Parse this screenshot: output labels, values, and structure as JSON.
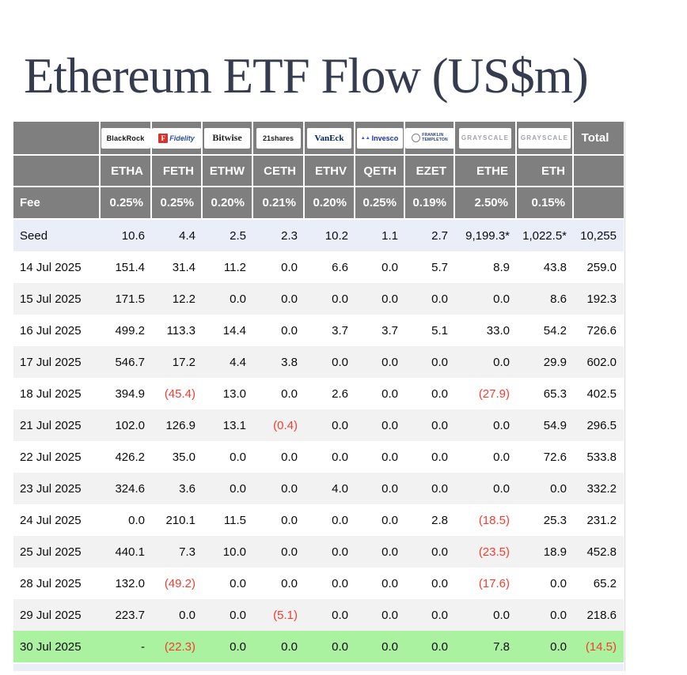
{
  "page": {
    "title": "Ethereum ETF Flow (US$m)"
  },
  "colors": {
    "header_gray": "#7f7f7f",
    "seed_row_blue": "#e9eef8",
    "alt_row_gray": "#f2f2f2",
    "green_row": "#aaf2a0",
    "negative_red": "#f43b30",
    "title_navy": "#363c4f"
  },
  "chart_data": {
    "type": "table",
    "title": "Ethereum ETF Flow (US$m)",
    "fee_row_label": "Fee",
    "total_header": "Total",
    "columns": [
      {
        "id": "blackrock",
        "logo_text": "BlackRock",
        "ticker": "ETHA",
        "fee": "0.25%"
      },
      {
        "id": "fidelity",
        "logo_text": "Fidelity",
        "ticker": "FETH",
        "fee": "0.25%"
      },
      {
        "id": "bitwise",
        "logo_text": "Bitwise",
        "ticker": "ETHW",
        "fee": "0.20%"
      },
      {
        "id": "21shares",
        "logo_text": "21shares",
        "ticker": "CETH",
        "fee": "0.21%"
      },
      {
        "id": "vaneck",
        "logo_text": "VanEck",
        "ticker": "ETHV",
        "fee": "0.20%"
      },
      {
        "id": "invesco",
        "logo_text": "Invesco",
        "ticker": "QETH",
        "fee": "0.25%"
      },
      {
        "id": "franklin",
        "logo_text": "FRANKLIN TEMPLETON",
        "logo_lines": [
          "FRANKLIN",
          "TEMPLETON"
        ],
        "ticker": "EZET",
        "fee": "0.19%"
      },
      {
        "id": "grayscale",
        "logo_text": "GRAYSCALE",
        "ticker": "ETHE",
        "fee": "2.50%"
      },
      {
        "id": "grayscale2",
        "logo_text": "GRAYSCALE",
        "ticker": "ETH",
        "fee": "0.15%"
      },
      {
        "id": "total",
        "header": "Total",
        "ticker": "",
        "fee": ""
      }
    ],
    "rows": [
      {
        "label": "Seed",
        "style": "seed",
        "values": [
          "10.6",
          "4.4",
          "2.5",
          "2.3",
          "10.2",
          "1.1",
          "2.7",
          "9,199.3*",
          "1,022.5*",
          "10,255"
        ]
      },
      {
        "label": "14 Jul 2025",
        "style": "plain",
        "values": [
          "151.4",
          "31.4",
          "11.2",
          "0.0",
          "6.6",
          "0.0",
          "5.7",
          "8.9",
          "43.8",
          "259.0"
        ]
      },
      {
        "label": "15 Jul 2025",
        "style": "alt",
        "values": [
          "171.5",
          "12.2",
          "0.0",
          "0.0",
          "0.0",
          "0.0",
          "0.0",
          "0.0",
          "8.6",
          "192.3"
        ]
      },
      {
        "label": "16 Jul 2025",
        "style": "plain",
        "values": [
          "499.2",
          "113.3",
          "14.4",
          "0.0",
          "3.7",
          "3.7",
          "5.1",
          "33.0",
          "54.2",
          "726.6"
        ]
      },
      {
        "label": "17 Jul 2025",
        "style": "alt",
        "values": [
          "546.7",
          "17.2",
          "4.4",
          "3.8",
          "0.0",
          "0.0",
          "0.0",
          "0.0",
          "29.9",
          "602.0"
        ]
      },
      {
        "label": "18 Jul 2025",
        "style": "plain",
        "values": [
          "394.9",
          "(45.4)",
          "13.0",
          "0.0",
          "2.6",
          "0.0",
          "0.0",
          "(27.9)",
          "65.3",
          "402.5"
        ]
      },
      {
        "label": "21 Jul 2025",
        "style": "alt",
        "values": [
          "102.0",
          "126.9",
          "13.1",
          "(0.4)",
          "0.0",
          "0.0",
          "0.0",
          "0.0",
          "54.9",
          "296.5"
        ]
      },
      {
        "label": "22 Jul 2025",
        "style": "plain",
        "values": [
          "426.2",
          "35.0",
          "0.0",
          "0.0",
          "0.0",
          "0.0",
          "0.0",
          "0.0",
          "72.6",
          "533.8"
        ]
      },
      {
        "label": "23 Jul 2025",
        "style": "alt",
        "values": [
          "324.6",
          "3.6",
          "0.0",
          "0.0",
          "4.0",
          "0.0",
          "0.0",
          "0.0",
          "0.0",
          "332.2"
        ]
      },
      {
        "label": "24 Jul 2025",
        "style": "plain",
        "values": [
          "0.0",
          "210.1",
          "11.5",
          "0.0",
          "0.0",
          "0.0",
          "2.8",
          "(18.5)",
          "25.3",
          "231.2"
        ]
      },
      {
        "label": "25 Jul 2025",
        "style": "alt",
        "values": [
          "440.1",
          "7.3",
          "10.0",
          "0.0",
          "0.0",
          "0.0",
          "0.0",
          "(23.5)",
          "18.9",
          "452.8"
        ]
      },
      {
        "label": "28 Jul 2025",
        "style": "plain",
        "values": [
          "132.0",
          "(49.2)",
          "0.0",
          "0.0",
          "0.0",
          "0.0",
          "0.0",
          "(17.6)",
          "0.0",
          "65.2"
        ]
      },
      {
        "label": "29 Jul 2025",
        "style": "alt",
        "values": [
          "223.7",
          "0.0",
          "0.0",
          "(5.1)",
          "0.0",
          "0.0",
          "0.0",
          "0.0",
          "0.0",
          "218.6"
        ]
      },
      {
        "label": "30 Jul 2025",
        "style": "green",
        "values": [
          "-",
          "(22.3)",
          "0.0",
          "0.0",
          "0.0",
          "0.0",
          "0.0",
          "7.8",
          "0.0",
          "(14.5)"
        ]
      }
    ]
  }
}
